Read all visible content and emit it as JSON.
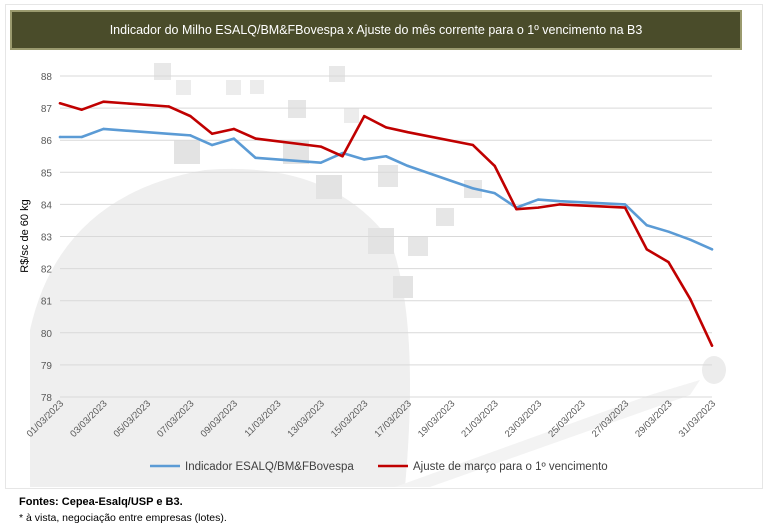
{
  "header": {
    "title": "Indicador do Milho ESALQ/BM&FBovespa x Ajuste do mês corrente para o 1º vencimento na B3"
  },
  "footer": {
    "sources": "Fontes: Cepea-Esalq/USP e B3.",
    "note": "*  à vista, negociação entre empresas (lotes)."
  },
  "chart_data": {
    "type": "line",
    "title": "Indicador do Milho ESALQ/BM&FBovespa x Ajuste do mês corrente para o 1º vencimento na B3",
    "ylabel": "R$/sc de 60 kg",
    "xlabel": "",
    "ylim": [
      78,
      88
    ],
    "yticks": [
      "78",
      "79",
      "80",
      "81",
      "82",
      "83",
      "84",
      "85",
      "86",
      "87",
      "88"
    ],
    "xtick_labels": [
      "01/03/2023",
      "03/03/2023",
      "05/03/2023",
      "07/03/2023",
      "09/03/2023",
      "11/03/2023",
      "13/03/2023",
      "15/03/2023",
      "17/03/2023",
      "19/03/2023",
      "21/03/2023",
      "23/03/2023",
      "25/03/2023",
      "27/03/2023",
      "29/03/2023",
      "31/03/2023"
    ],
    "x": [
      "01/03/2023",
      "02/03/2023",
      "03/03/2023",
      "06/03/2023",
      "07/03/2023",
      "08/03/2023",
      "09/03/2023",
      "10/03/2023",
      "13/03/2023",
      "14/03/2023",
      "15/03/2023",
      "16/03/2023",
      "17/03/2023",
      "20/03/2023",
      "21/03/2023",
      "22/03/2023",
      "23/03/2023",
      "24/03/2023",
      "27/03/2023",
      "28/03/2023",
      "29/03/2023",
      "30/03/2023",
      "31/03/2023"
    ],
    "series": [
      {
        "name": "Indicador ESALQ/BM&FBovespa",
        "color": "#5b9bd5",
        "values": [
          86.1,
          86.1,
          86.35,
          86.2,
          86.15,
          85.85,
          86.05,
          85.45,
          85.3,
          85.6,
          85.4,
          85.5,
          85.2,
          84.5,
          84.35,
          83.9,
          84.15,
          84.1,
          84.0,
          83.35,
          83.15,
          82.9,
          82.6
        ]
      },
      {
        "name": "Ajuste de março para o 1º vencimento",
        "color": "#c00000",
        "values": [
          87.15,
          86.95,
          87.2,
          87.05,
          86.75,
          86.2,
          86.35,
          86.05,
          85.8,
          85.5,
          86.75,
          86.4,
          86.25,
          85.85,
          85.2,
          83.85,
          83.9,
          84.0,
          83.9,
          82.6,
          82.2,
          81.05,
          79.6
        ]
      }
    ],
    "grid": true,
    "legend_position": "bottom"
  }
}
